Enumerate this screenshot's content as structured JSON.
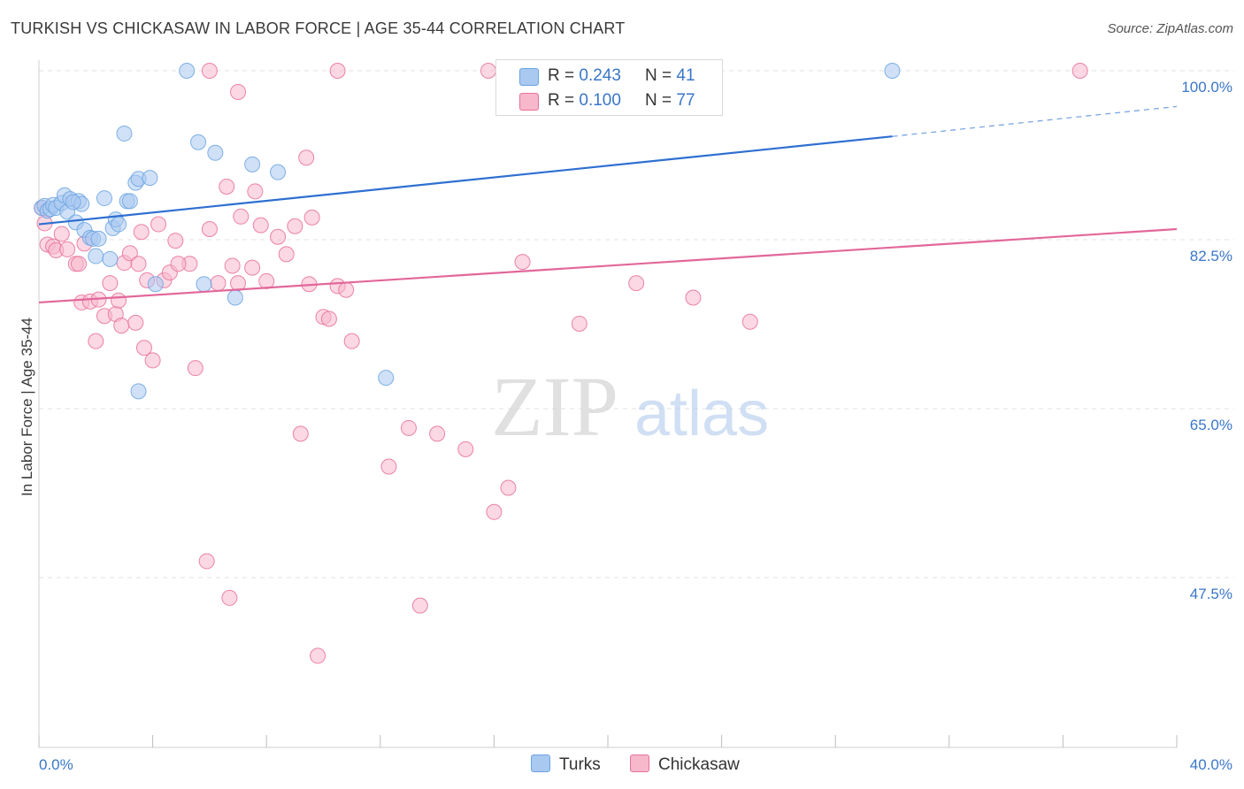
{
  "title": "TURKISH VS CHICKASAW IN LABOR FORCE | AGE 35-44 CORRELATION CHART",
  "source": "Source: ZipAtlas.com",
  "watermark": {
    "zip": "ZIP",
    "atlas": "atlas"
  },
  "legend_top": [
    {
      "r_label": "R = ",
      "r_value": "0.243",
      "n_label": "N = ",
      "n_value": "41",
      "color": "#a9c9f1"
    },
    {
      "r_label": "R = ",
      "r_value": "0.100",
      "n_label": "N = ",
      "n_value": "77",
      "color": "#f7b8cc"
    }
  ],
  "chart_data": {
    "type": "scatter",
    "title": "TURKISH VS CHICKASAW IN LABOR FORCE | AGE 35-44 CORRELATION CHART",
    "xlabel": "",
    "ylabel": "In Labor Force | Age 35-44",
    "xlim": [
      0,
      40
    ],
    "ylim": [
      32,
      101
    ],
    "x_tick_labels": [
      "0.0%",
      "40.0%"
    ],
    "y_ticks": [
      100,
      82.5,
      65,
      47.5
    ],
    "y_tick_labels": [
      "100.0%",
      "82.5%",
      "65.0%",
      "47.5%"
    ],
    "grid": "horizontal dashed",
    "legend_placement": "top-center and bottom-center",
    "series": [
      {
        "name": "Turks",
        "color": "#6aa3e2",
        "fill": "#a9c9f1",
        "trend": {
          "x": [
            0,
            30
          ],
          "y": [
            84.1,
            93.2
          ],
          "dashed_to_x": 40,
          "dashed_to_y": 96.3
        },
        "points": [
          [
            0.1,
            85.8
          ],
          [
            0.2,
            86.0
          ],
          [
            0.3,
            85.5
          ],
          [
            0.4,
            85.7
          ],
          [
            0.5,
            86.1
          ],
          [
            0.6,
            85.8
          ],
          [
            0.8,
            86.3
          ],
          [
            0.9,
            87.1
          ],
          [
            1.0,
            85.4
          ],
          [
            1.1,
            86.7
          ],
          [
            1.3,
            84.3
          ],
          [
            1.4,
            86.5
          ],
          [
            1.5,
            86.2
          ],
          [
            1.6,
            83.5
          ],
          [
            1.8,
            82.7
          ],
          [
            1.9,
            82.6
          ],
          [
            2.0,
            80.8
          ],
          [
            2.1,
            82.6
          ],
          [
            2.3,
            86.8
          ],
          [
            2.5,
            80.5
          ],
          [
            2.6,
            83.7
          ],
          [
            2.7,
            84.6
          ],
          [
            2.8,
            84.1
          ],
          [
            3.0,
            93.5
          ],
          [
            3.1,
            86.5
          ],
          [
            3.2,
            86.5
          ],
          [
            3.4,
            88.4
          ],
          [
            3.5,
            88.8
          ],
          [
            3.9,
            88.9
          ],
          [
            4.1,
            77.9
          ],
          [
            5.2,
            100.0
          ],
          [
            5.6,
            92.6
          ],
          [
            5.8,
            77.9
          ],
          [
            6.2,
            91.5
          ],
          [
            6.9,
            76.5
          ],
          [
            7.5,
            90.3
          ],
          [
            8.4,
            89.5
          ],
          [
            12.2,
            68.2
          ],
          [
            3.5,
            66.8
          ],
          [
            30.0,
            100.0
          ],
          [
            1.2,
            86.4
          ]
        ]
      },
      {
        "name": "Chickasaw",
        "color": "#e8709a",
        "fill": "#f7b8cc",
        "trend": {
          "x": [
            0,
            40
          ],
          "y": [
            76.0,
            83.6
          ]
        },
        "points": [
          [
            0.1,
            85.8
          ],
          [
            0.2,
            84.2
          ],
          [
            0.3,
            82.0
          ],
          [
            0.5,
            81.8
          ],
          [
            0.6,
            81.4
          ],
          [
            0.8,
            83.1
          ],
          [
            1.0,
            81.5
          ],
          [
            1.3,
            80.0
          ],
          [
            1.4,
            80.0
          ],
          [
            1.5,
            76.0
          ],
          [
            1.6,
            82.1
          ],
          [
            1.8,
            76.1
          ],
          [
            2.0,
            72.0
          ],
          [
            2.1,
            76.3
          ],
          [
            2.3,
            74.6
          ],
          [
            2.5,
            78.0
          ],
          [
            2.7,
            74.8
          ],
          [
            2.8,
            76.2
          ],
          [
            2.9,
            73.6
          ],
          [
            3.0,
            80.1
          ],
          [
            3.2,
            81.1
          ],
          [
            3.4,
            73.9
          ],
          [
            3.6,
            83.3
          ],
          [
            3.7,
            71.3
          ],
          [
            3.8,
            78.3
          ],
          [
            4.0,
            70.0
          ],
          [
            4.2,
            84.1
          ],
          [
            4.4,
            78.3
          ],
          [
            4.6,
            79.1
          ],
          [
            4.8,
            82.4
          ],
          [
            5.3,
            80.0
          ],
          [
            5.5,
            69.2
          ],
          [
            6.0,
            83.6
          ],
          [
            6.3,
            78.0
          ],
          [
            6.6,
            88.0
          ],
          [
            6.8,
            79.8
          ],
          [
            7.0,
            78.0
          ],
          [
            7.1,
            84.9
          ],
          [
            7.5,
            79.6
          ],
          [
            7.6,
            87.5
          ],
          [
            7.8,
            84.0
          ],
          [
            8.0,
            78.2
          ],
          [
            8.4,
            82.8
          ],
          [
            8.7,
            81.0
          ],
          [
            9.0,
            83.9
          ],
          [
            9.2,
            62.4
          ],
          [
            9.4,
            91.0
          ],
          [
            9.5,
            77.9
          ],
          [
            9.6,
            84.8
          ],
          [
            10.0,
            74.5
          ],
          [
            10.2,
            74.3
          ],
          [
            10.5,
            77.7
          ],
          [
            10.8,
            77.3
          ],
          [
            11.0,
            72.0
          ],
          [
            12.3,
            59.0
          ],
          [
            13.0,
            63.0
          ],
          [
            14.0,
            62.4
          ],
          [
            15.0,
            60.8
          ],
          [
            16.0,
            54.3
          ],
          [
            16.5,
            56.8
          ],
          [
            17.0,
            80.2
          ],
          [
            19.0,
            73.8
          ],
          [
            21.0,
            78.0
          ],
          [
            23.0,
            76.5
          ],
          [
            25.0,
            74.0
          ],
          [
            7.0,
            97.8
          ],
          [
            6.0,
            100.0
          ],
          [
            10.5,
            100.0
          ],
          [
            15.8,
            100.0
          ],
          [
            17.5,
            100.0
          ],
          [
            36.6,
            100.0
          ],
          [
            5.9,
            49.2
          ],
          [
            6.7,
            45.4
          ],
          [
            13.4,
            44.6
          ],
          [
            9.8,
            39.4
          ],
          [
            3.5,
            80.0
          ],
          [
            4.9,
            80.0
          ]
        ]
      }
    ]
  },
  "legend_bottom": [
    {
      "label": "Turks",
      "color": "#a9c9f1"
    },
    {
      "label": "Chickasaw",
      "color": "#f7b8cc"
    }
  ]
}
